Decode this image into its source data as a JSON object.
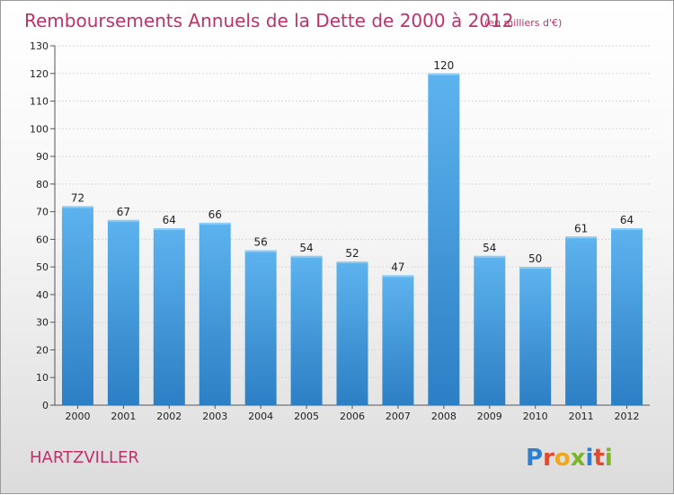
{
  "chart_data": {
    "type": "bar",
    "title": "Remboursements Annuels de la Dette de 2000 à 2012",
    "subtitle": "(en milliers d'€)",
    "categories": [
      "2000",
      "2001",
      "2002",
      "2003",
      "2004",
      "2005",
      "2006",
      "2007",
      "2008",
      "2009",
      "2010",
      "2011",
      "2012"
    ],
    "values": [
      72,
      67,
      64,
      66,
      56,
      54,
      52,
      47,
      120,
      54,
      50,
      61,
      64
    ],
    "ylim": [
      0,
      130
    ],
    "yticks": [
      0,
      10,
      20,
      30,
      40,
      50,
      60,
      70,
      80,
      90,
      100,
      110,
      120,
      130
    ],
    "grid": true,
    "bar_color": "#4a9fe0",
    "bar_color_dark": "#2c7fc4"
  },
  "footer": {
    "commune": "HARTZVILLER",
    "logo": "Proxiti"
  },
  "colors": {
    "title": "#c0306a",
    "logo_letters": [
      "#2e7fd0",
      "#e04a2e",
      "#f0a81a",
      "#7cb52a",
      "#2e7fd0",
      "#e04a2e",
      "#7cb52a"
    ]
  }
}
